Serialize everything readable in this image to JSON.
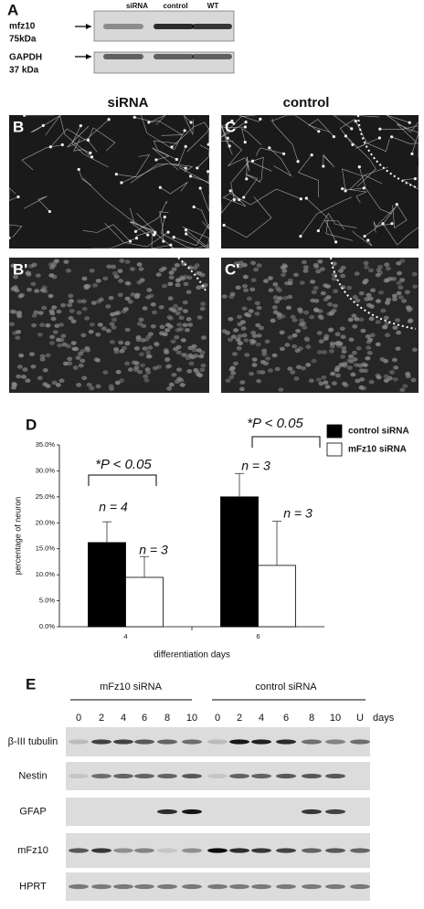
{
  "panel_a": {
    "letter": "A",
    "lanes": [
      "siRNA",
      "control",
      "WT"
    ],
    "blots": [
      {
        "name": "mfz10",
        "size": "75kDa"
      },
      {
        "name": "GAPDH",
        "size": "37 kDa"
      }
    ]
  },
  "panels_bc": {
    "columns": [
      "siRNA",
      "control"
    ],
    "letters": [
      "B",
      "C",
      "B'",
      "C'"
    ]
  },
  "panel_d": {
    "letter": "D"
  },
  "chart_data": {
    "type": "bar",
    "categories": [
      "4",
      "6"
    ],
    "series": [
      {
        "name": "control siRNA",
        "color": "#000000",
        "values": [
          16.2,
          25.0
        ],
        "errors": [
          4.0,
          4.5
        ]
      },
      {
        "name": "mFz10 siRNA",
        "color": "#ffffff",
        "values": [
          9.5,
          11.8
        ],
        "errors": [
          4.0,
          8.5
        ]
      }
    ],
    "ylim": [
      0,
      35
    ],
    "yticks": [
      {
        "value": 0,
        "label": "0.0%"
      },
      {
        "value": 5,
        "label": "5.0%"
      },
      {
        "value": 10,
        "label": "10.0%"
      },
      {
        "value": 15,
        "label": "15.0%"
      },
      {
        "value": 20,
        "label": "20.0%"
      },
      {
        "value": 25,
        "label": "25.0%"
      },
      {
        "value": 30,
        "label": "30.0%"
      },
      {
        "value": 35,
        "label": "35.0%"
      }
    ],
    "xlabel": "differentiation days",
    "ylabel": "percentage of neuron",
    "legend": "top-right",
    "annotations": [
      "*P < 0.05",
      "n = 4",
      "n = 3",
      "*P < 0.05",
      "n = 3",
      "n = 3"
    ]
  },
  "panel_e": {
    "letter": "E",
    "groups": [
      "mFz10 siRNA",
      "control siRNA"
    ],
    "lanes": [
      "0",
      "2",
      "4",
      "6",
      "8",
      "10",
      "0",
      "2",
      "4",
      "6",
      "8",
      "10",
      "U"
    ],
    "unit": "days",
    "rows": [
      "β-III tubulin",
      "Nestin",
      "GFAP",
      "mFz10",
      "HPRT"
    ]
  }
}
